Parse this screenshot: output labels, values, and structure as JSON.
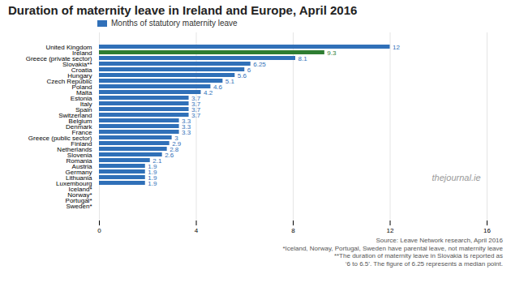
{
  "chart_data": {
    "type": "bar",
    "orientation": "horizontal",
    "title": "Duration of maternity leave in Ireland and Europe, April 2016",
    "categories": [
      "United Kingdom",
      "Ireland",
      "Greece (private sector)",
      "Slovakia**",
      "Croatia",
      "Hungary",
      "Czech Republic",
      "Poland",
      "Malta",
      "Estonia",
      "Italy",
      "Spain",
      "Switzerland",
      "Belgium",
      "Denmark",
      "France",
      "Greece (public sector)",
      "Finland",
      "Netherlands",
      "Slovenia",
      "Romania",
      "Austria",
      "Germany",
      "Lithuania",
      "Luxembourg",
      "Iceland*",
      "Norway*",
      "Portugal*",
      "Sweden*"
    ],
    "values": [
      12,
      9.3,
      8.1,
      6.25,
      6,
      5.6,
      5.1,
      4.6,
      4.2,
      3.7,
      3.7,
      3.7,
      3.7,
      3.3,
      3.3,
      3.3,
      3,
      2.9,
      2.8,
      2.6,
      2.1,
      1.9,
      1.9,
      1.9,
      1.9,
      0,
      0,
      0,
      0
    ],
    "value_labels": [
      "12",
      "9.3",
      "8.1",
      "6.25",
      "6",
      "5.6",
      "5.1",
      "4.6",
      "4.2",
      "3.7",
      "3.7",
      "3.7",
      "3.7",
      "3.3",
      "3.3",
      "3.3",
      "3",
      "2.9",
      "2.8",
      "2.6",
      "2.1",
      "1.9",
      "1.9",
      "1.9",
      "1.9",
      null,
      null,
      null,
      null
    ],
    "data_labels": true,
    "colors": [
      "#3070b8",
      "#2e7d32",
      "#3070b8",
      "#3070b8",
      "#3070b8",
      "#3070b8",
      "#3070b8",
      "#3070b8",
      "#3070b8",
      "#3070b8",
      "#3070b8",
      "#3070b8",
      "#3070b8",
      "#3070b8",
      "#3070b8",
      "#3070b8",
      "#3070b8",
      "#3070b8",
      "#3070b8",
      "#3070b8",
      "#3070b8",
      "#3070b8",
      "#3070b8",
      "#3070b8",
      "#3070b8",
      "#3070b8",
      "#3070b8",
      "#3070b8",
      "#3070b8"
    ],
    "legend": "top",
    "legend_entries": [
      {
        "name": "Months of statutory maternity leave",
        "color": "#3070b8"
      }
    ],
    "xlim": [
      0,
      16
    ],
    "xticks": [
      0,
      4,
      8,
      12,
      16
    ],
    "grid": true,
    "annotations": [
      "thejournal.ie"
    ],
    "source": "Source: Leave Network research, April 2016",
    "footnotes": [
      "*Iceland, Norway, Portugal, Sweden have parental leave, not maternity leave",
      "**The duration of maternity leave in Slovakia is reported as",
      "‘6 to 6.5’. The figure of 6.25 represents a median point."
    ]
  }
}
